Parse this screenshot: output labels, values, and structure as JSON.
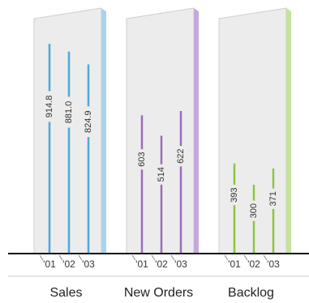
{
  "chart_data": {
    "type": "bar",
    "style": "3d-panel-lollipop",
    "title": "",
    "xlabel": "",
    "ylabel": "",
    "grid": false,
    "legend": "none",
    "categories": [
      "'01",
      "'02",
      "'03"
    ],
    "groups": [
      {
        "name": "Sales",
        "values": [
          914.8,
          881.0,
          824.9
        ],
        "labels": [
          "914.8",
          "881.0",
          "824.9"
        ],
        "ylim": [
          0,
          1000
        ],
        "color": "#4fa8d8",
        "side_color": "#a9d4ea"
      },
      {
        "name": "New Orders",
        "values": [
          603,
          514,
          622
        ],
        "labels": [
          "603",
          "514",
          "622"
        ],
        "ylim": [
          0,
          1000
        ],
        "color": "#9b6cb8",
        "side_color": "#c6a9d8"
      },
      {
        "name": "Backlog",
        "values": [
          393,
          300,
          371
        ],
        "labels": [
          "393",
          "300",
          "371"
        ],
        "ylim": [
          0,
          1000
        ],
        "color": "#8cc63f",
        "side_color": "#c4e29c"
      }
    ]
  }
}
